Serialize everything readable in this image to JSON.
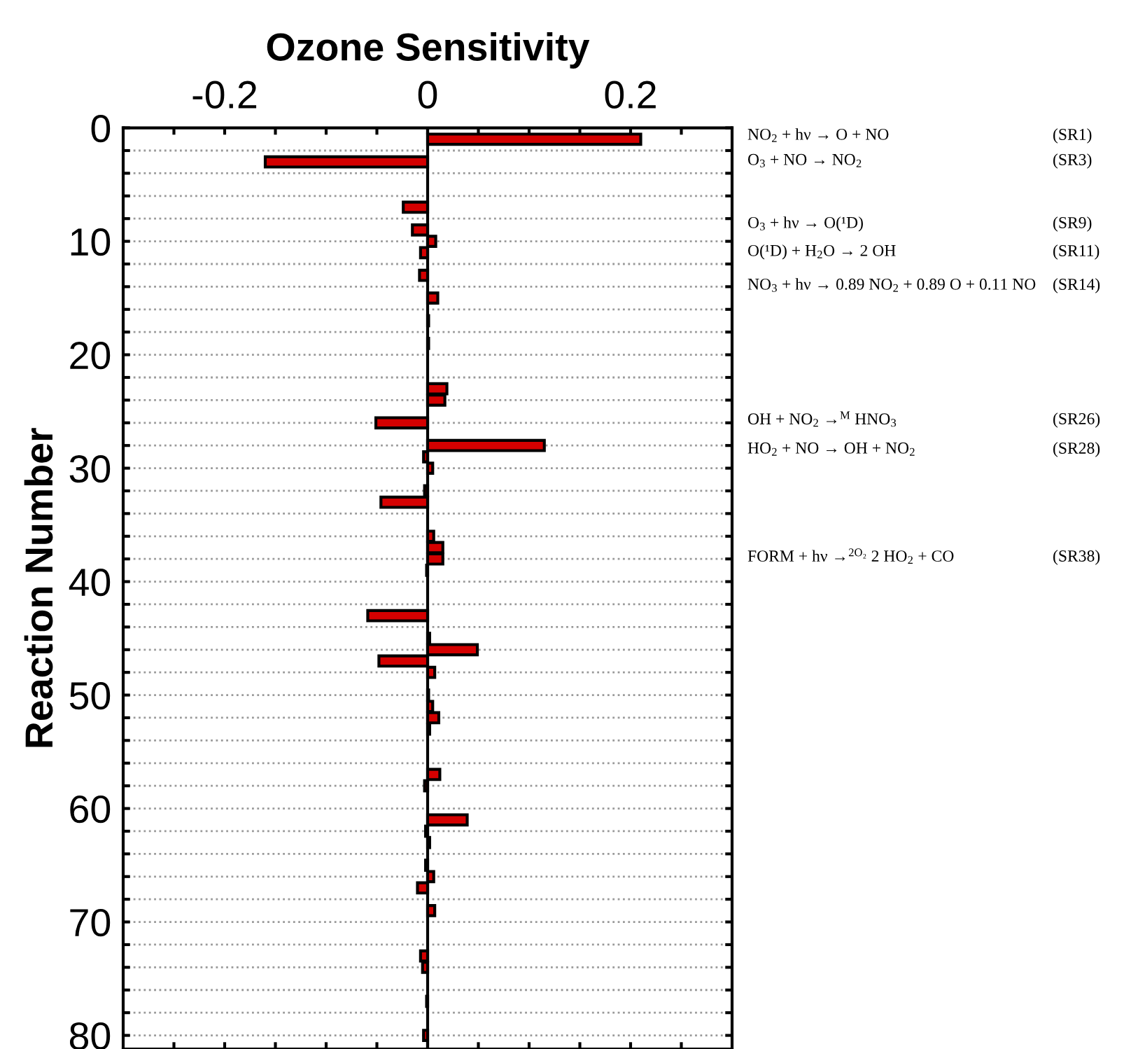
{
  "chart_data": {
    "type": "bar",
    "orientation": "horizontal",
    "xlabel": "Ozone Sensitivity",
    "ylabel": "Reaction Number",
    "x": [
      1,
      3,
      7,
      9,
      10,
      11,
      13,
      15,
      17,
      19,
      23,
      24,
      26,
      28,
      29,
      30,
      32,
      33,
      36,
      37,
      38,
      39,
      43,
      45,
      46,
      47,
      48,
      50,
      51,
      52,
      53,
      57,
      58,
      61,
      62,
      63,
      65,
      66,
      67,
      69,
      73,
      74,
      77,
      80
    ],
    "values": [
      0.21,
      -0.16,
      -0.024,
      -0.015,
      0.008,
      -0.007,
      -0.008,
      0.01,
      0.001,
      0.001,
      0.019,
      0.017,
      -0.051,
      0.115,
      -0.004,
      0.005,
      -0.003,
      -0.046,
      0.006,
      0.015,
      0.015,
      -0.001,
      -0.059,
      0.002,
      0.049,
      -0.048,
      0.007,
      0.001,
      0.005,
      0.011,
      0.002,
      0.012,
      -0.003,
      0.039,
      -0.002,
      0.002,
      -0.002,
      0.006,
      -0.01,
      0.007,
      -0.007,
      -0.005,
      -0.001,
      -0.004
    ],
    "color": "#d40000",
    "xlim": [
      -0.3,
      0.3
    ],
    "xticks": [
      {
        "value": -0.25,
        "label": null
      },
      -0.2,
      {
        "value": -0.15,
        "label": null
      },
      {
        "value": -0.1,
        "label": null
      },
      {
        "value": -0.05,
        "label": null
      },
      0,
      {
        "value": 0.05,
        "label": null
      },
      {
        "value": 0.1,
        "label": null
      },
      {
        "value": 0.15,
        "label": null
      },
      0.2,
      {
        "value": 0.25,
        "label": null
      }
    ],
    "ylim": [
      81.2,
      0
    ],
    "yticks": [
      0,
      {
        "value": 2,
        "label": null
      },
      {
        "value": 4,
        "label": null
      },
      {
        "value": 6,
        "label": null
      },
      {
        "value": 8,
        "label": null
      },
      10,
      {
        "value": 12,
        "label": null
      },
      {
        "value": 14,
        "label": null
      },
      {
        "value": 16,
        "label": null
      },
      {
        "value": 18,
        "label": null
      },
      20,
      {
        "value": 22,
        "label": null
      },
      {
        "value": 24,
        "label": null
      },
      {
        "value": 26,
        "label": null
      },
      {
        "value": 28,
        "label": null
      },
      30,
      {
        "value": 32,
        "label": null
      },
      {
        "value": 34,
        "label": null
      },
      {
        "value": 36,
        "label": null
      },
      {
        "value": 38,
        "label": null
      },
      40,
      {
        "value": 42,
        "label": null
      },
      {
        "value": 44,
        "label": null
      },
      {
        "value": 46,
        "label": null
      },
      {
        "value": 48,
        "label": null
      },
      50,
      {
        "value": 52,
        "label": null
      },
      {
        "value": 54,
        "label": null
      },
      {
        "value": 56,
        "label": null
      },
      {
        "value": 58,
        "label": null
      },
      60,
      {
        "value": 62,
        "label": null
      },
      {
        "value": 64,
        "label": null
      },
      {
        "value": 66,
        "label": null
      },
      {
        "value": 68,
        "label": null
      },
      70,
      {
        "value": 72,
        "label": null
      },
      {
        "value": 74,
        "label": null
      },
      {
        "value": 76,
        "label": null
      },
      {
        "value": 78,
        "label": null
      },
      80
    ],
    "grid": "y",
    "annotations": [
      "NO$_{2}$ + hν → O + NO",
      "(SR1)",
      "O$_{3}$ + NO → NO$_{2}$",
      "(SR3)",
      "O$_{3}$ + hν → O(¹D)",
      "(SR9)",
      "O(¹D) + H$_{2}$O → 2 OH",
      "(SR11)",
      "NO$_{3}$ + hν → 0.89 NO$_{2}$ + 0.89 O + 0.11 NO",
      "(SR14)",
      "OH + NO$_{2}$ →$^{M}$ HNO$_{3}$",
      "(SR26)",
      "HO$_{2}$ + NO → OH + NO$_{2}$",
      "(SR28)",
      "FORM + hν →$^{2O₂}$ 2 HO$_{2}$ + CO",
      "(SR38)"
    ]
  }
}
